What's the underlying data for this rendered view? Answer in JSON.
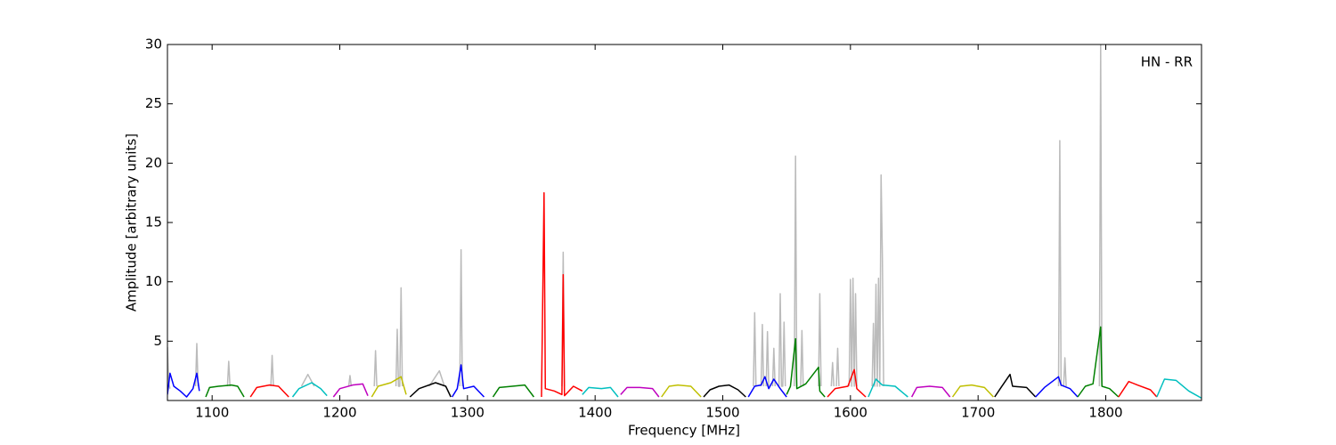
{
  "chart_data": {
    "type": "line",
    "xlabel": "Frequency [MHz]",
    "ylabel": "Amplitude [arbitrary units]",
    "annotation": "HN - RR",
    "xlim": [
      1065,
      1875
    ],
    "ylim": [
      0,
      30
    ],
    "xticks": [
      1100,
      1200,
      1300,
      1400,
      1500,
      1600,
      1700,
      1800
    ],
    "yticks": [
      5,
      10,
      15,
      20,
      25,
      30
    ],
    "series": [
      {
        "color": "#bbbbbb",
        "x": [
          1065,
          1066,
          1067,
          1068,
          1087,
          1088,
          1089,
          1090,
          1112,
          1113,
          1114,
          1115,
          1146,
          1147,
          1148,
          1149,
          1170,
          1175,
          1180,
          1181,
          1207,
          1208,
          1209,
          1210,
          1227,
          1228,
          1229,
          1230,
          1244,
          1245,
          1246,
          1247,
          1248,
          1249,
          1250,
          1270,
          1278,
          1282,
          1283,
          1294,
          1295,
          1296,
          1297,
          1374,
          1375,
          1376,
          1377,
          1524,
          1525,
          1526,
          1527,
          1530,
          1531,
          1532,
          1533,
          1534,
          1535,
          1536,
          1537,
          1539,
          1540,
          1541,
          1542,
          1544,
          1545,
          1546,
          1547,
          1548,
          1549,
          1550,
          1556,
          1557,
          1558,
          1559,
          1561,
          1562,
          1563,
          1564,
          1575,
          1576,
          1577,
          1578,
          1585,
          1586,
          1587,
          1588,
          1589,
          1590,
          1591,
          1592,
          1599,
          1600,
          1601,
          1602,
          1603,
          1604,
          1605,
          1606,
          1617,
          1618,
          1619,
          1620,
          1621,
          1622,
          1623,
          1624,
          1625,
          1626,
          1627,
          1763,
          1764,
          1765,
          1766,
          1767,
          1768,
          1769,
          1770,
          1795,
          1796,
          1797
        ],
        "values": [
          4.5,
          1.5,
          1.0,
          null,
          1.2,
          4.8,
          1.2,
          null,
          1.2,
          3.3,
          1.2,
          null,
          1.2,
          3.8,
          1.2,
          null,
          1.2,
          2.2,
          1.2,
          null,
          1.2,
          2.1,
          1.2,
          null,
          1.2,
          4.2,
          1.2,
          null,
          1.2,
          6.0,
          1.2,
          1.2,
          9.5,
          1.2,
          null,
          1.2,
          2.5,
          1.2,
          null,
          1.2,
          12.7,
          1.2,
          null,
          1.2,
          12.5,
          1.2,
          null,
          1.2,
          7.4,
          1.2,
          null,
          1.2,
          6.4,
          1.2,
          null,
          1.2,
          5.8,
          1.2,
          null,
          1.2,
          4.4,
          1.2,
          null,
          1.2,
          9.0,
          1.2,
          1.2,
          6.6,
          1.2,
          null,
          1.2,
          20.6,
          1.2,
          null,
          1.2,
          5.9,
          1.2,
          null,
          1.2,
          9.0,
          1.2,
          null,
          1.2,
          3.2,
          1.2,
          null,
          1.2,
          4.4,
          1.2,
          null,
          1.2,
          10.2,
          1.2,
          10.3,
          1.2,
          9.0,
          1.2,
          null,
          1.2,
          6.5,
          1.2,
          9.8,
          1.2,
          10.3,
          1.2,
          19.0,
          12.2,
          1.2,
          null,
          1.2,
          21.9,
          1.2,
          null,
          1.2,
          3.6,
          1.2,
          null,
          1.2,
          30,
          1.2
        ]
      },
      {
        "color": "#0000ff",
        "x": [
          1065,
          1067,
          1070,
          1075,
          1080,
          1085,
          1088,
          1090
        ],
        "values": [
          0.5,
          2.3,
          1.2,
          0.8,
          0.3,
          1.0,
          2.3,
          0.8
        ]
      },
      {
        "color": "#008000",
        "x": [
          1095,
          1098,
          1105,
          1115,
          1120,
          1125
        ],
        "values": [
          0.3,
          1.1,
          1.2,
          1.3,
          1.2,
          0.3
        ]
      },
      {
        "color": "#ff0000",
        "x": [
          1130,
          1135,
          1145,
          1152,
          1160
        ],
        "values": [
          0.3,
          1.1,
          1.3,
          1.2,
          0.3
        ]
      },
      {
        "color": "#00bfbf",
        "x": [
          1163,
          1168,
          1178,
          1185,
          1190
        ],
        "values": [
          0.3,
          1.0,
          1.5,
          1.0,
          0.4
        ]
      },
      {
        "color": "#bf00bf",
        "x": [
          1195,
          1200,
          1210,
          1218,
          1222
        ],
        "values": [
          0.3,
          1.0,
          1.3,
          1.4,
          0.4
        ]
      },
      {
        "color": "#bfbf00",
        "x": [
          1225,
          1230,
          1240,
          1248,
          1252
        ],
        "values": [
          0.3,
          1.2,
          1.5,
          2.0,
          0.5
        ]
      },
      {
        "color": "#000000",
        "x": [
          1255,
          1262,
          1275,
          1283,
          1287
        ],
        "values": [
          0.3,
          1.0,
          1.5,
          1.2,
          0.3
        ]
      },
      {
        "color": "#0000ff",
        "x": [
          1288,
          1292,
          1295,
          1297,
          1305,
          1313
        ],
        "values": [
          0.3,
          1.0,
          3.0,
          1.0,
          1.2,
          0.3
        ]
      },
      {
        "color": "#008000",
        "x": [
          1320,
          1325,
          1335,
          1345,
          1352
        ],
        "values": [
          0.3,
          1.1,
          1.2,
          1.3,
          0.3
        ]
      },
      {
        "color": "#ff0000",
        "x": [
          1358,
          1360,
          1361,
          1368,
          1374,
          1375,
          1376,
          1383,
          1390
        ],
        "values": [
          0.3,
          17.5,
          1.0,
          0.8,
          0.5,
          10.6,
          0.4,
          1.2,
          0.8
        ]
      },
      {
        "color": "#00bfbf",
        "x": [
          1390,
          1395,
          1405,
          1412,
          1418
        ],
        "values": [
          0.5,
          1.1,
          1.0,
          1.1,
          0.3
        ]
      },
      {
        "color": "#bf00bf",
        "x": [
          1420,
          1425,
          1435,
          1445,
          1450
        ],
        "values": [
          0.5,
          1.1,
          1.1,
          1.0,
          0.3
        ]
      },
      {
        "color": "#bfbf00",
        "x": [
          1452,
          1458,
          1465,
          1475,
          1483
        ],
        "values": [
          0.3,
          1.2,
          1.3,
          1.2,
          0.3
        ]
      },
      {
        "color": "#000000",
        "x": [
          1485,
          1490,
          1497,
          1505,
          1512,
          1518
        ],
        "values": [
          0.3,
          0.9,
          1.2,
          1.3,
          0.9,
          0.3
        ]
      },
      {
        "color": "#0000ff",
        "x": [
          1520,
          1525,
          1530,
          1533,
          1536,
          1540,
          1545,
          1550
        ],
        "values": [
          0.3,
          1.2,
          1.3,
          2.0,
          1.0,
          1.8,
          1.0,
          0.3
        ]
      },
      {
        "color": "#008000",
        "x": [
          1550,
          1553,
          1557,
          1558,
          1565,
          1575,
          1576,
          1580
        ],
        "values": [
          0.5,
          1.2,
          5.2,
          1.0,
          1.4,
          2.8,
          0.8,
          0.3
        ]
      },
      {
        "color": "#ff0000",
        "x": [
          1582,
          1588,
          1598,
          1603,
          1605,
          1612
        ],
        "values": [
          0.3,
          1.0,
          1.2,
          2.6,
          1.0,
          0.3
        ]
      },
      {
        "color": "#00bfbf",
        "x": [
          1614,
          1620,
          1625,
          1635,
          1645
        ],
        "values": [
          0.3,
          1.8,
          1.3,
          1.2,
          0.3
        ]
      },
      {
        "color": "#bf00bf",
        "x": [
          1648,
          1652,
          1662,
          1672,
          1678
        ],
        "values": [
          0.3,
          1.1,
          1.2,
          1.1,
          0.3
        ]
      },
      {
        "color": "#bfbf00",
        "x": [
          1680,
          1686,
          1695,
          1705,
          1712
        ],
        "values": [
          0.3,
          1.2,
          1.3,
          1.1,
          0.3
        ]
      },
      {
        "color": "#000000",
        "x": [
          1713,
          1718,
          1725,
          1727,
          1738,
          1745
        ],
        "values": [
          0.3,
          1.1,
          2.2,
          1.2,
          1.1,
          0.3
        ]
      },
      {
        "color": "#0000ff",
        "x": [
          1745,
          1752,
          1763,
          1765,
          1772,
          1778
        ],
        "values": [
          0.3,
          1.1,
          2.0,
          1.3,
          1.0,
          0.3
        ]
      },
      {
        "color": "#008000",
        "x": [
          1778,
          1784,
          1790,
          1796,
          1797,
          1803,
          1810
        ],
        "values": [
          0.3,
          1.2,
          1.4,
          6.2,
          1.2,
          1.0,
          0.3
        ]
      },
      {
        "color": "#ff0000",
        "x": [
          1810,
          1818,
          1825,
          1835,
          1840
        ],
        "values": [
          0.3,
          1.6,
          1.3,
          0.9,
          0.3
        ]
      },
      {
        "color": "#00bfbf",
        "x": [
          1840,
          1846,
          1855,
          1865,
          1875
        ],
        "values": [
          0.3,
          1.8,
          1.7,
          0.8,
          0.2
        ]
      }
    ]
  }
}
